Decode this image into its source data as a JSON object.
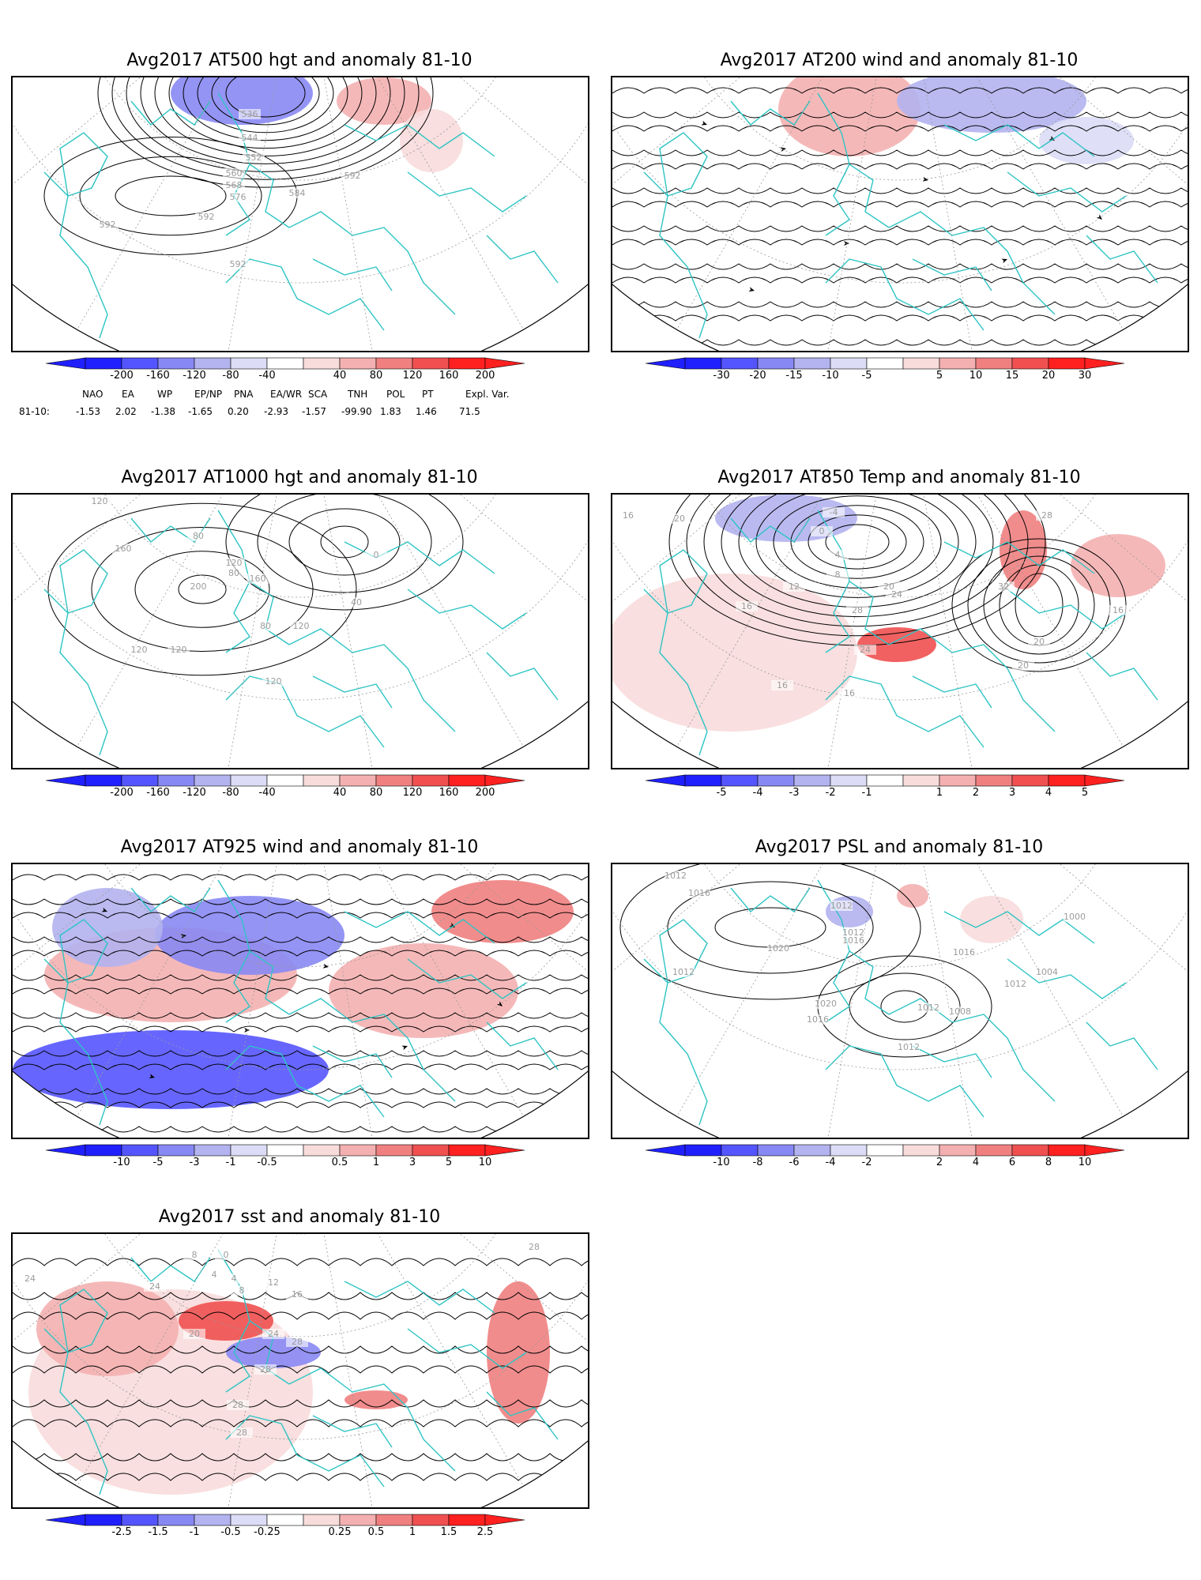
{
  "panels": [
    {
      "id": "p500",
      "title": "Avg2017 AT500 hgt and anomaly 81-10",
      "contour_labels": [
        "536",
        "544",
        "552",
        "560",
        "568",
        "576",
        "584",
        "592",
        "592",
        "592",
        "592"
      ],
      "colorbar": [
        "-200",
        "-160",
        "-120",
        "-80",
        "-40",
        "40",
        "80",
        "120",
        "160",
        "200"
      ]
    },
    {
      "id": "p200",
      "title": "Avg2017 AT200 wind and anomaly 81-10",
      "contour_labels": [],
      "colorbar": [
        "-30",
        "-20",
        "-15",
        "-10",
        "-5",
        "5",
        "10",
        "15",
        "20",
        "30"
      ]
    },
    {
      "id": "p1000",
      "title": "Avg2017 AT1000 hgt and anomaly 81-10",
      "contour_labels": [
        "120",
        "80",
        "80",
        "160",
        "200",
        "160",
        "120",
        "0",
        "40",
        "120",
        "80",
        "120",
        "120",
        "120"
      ],
      "colorbar": [
        "-200",
        "-160",
        "-120",
        "-80",
        "-40",
        "40",
        "80",
        "120",
        "160",
        "200"
      ]
    },
    {
      "id": "p850",
      "title": "Avg2017 AT850 Temp and anomaly 81-10",
      "contour_labels": [
        "16",
        "20",
        "-4",
        "0",
        "4",
        "8",
        "12",
        "16",
        "20",
        "24",
        "28",
        "32",
        "28",
        "16",
        "20",
        "24",
        "20",
        "16",
        "16"
      ],
      "colorbar": [
        "-5",
        "-4",
        "-3",
        "-2",
        "-1",
        "1",
        "2",
        "3",
        "4",
        "5"
      ]
    },
    {
      "id": "p925",
      "title": "Avg2017 AT925 wind and anomaly 81-10",
      "contour_labels": [],
      "colorbar": [
        "-10",
        "-5",
        "-3",
        "-1",
        "-0.5",
        "0.5",
        "1",
        "3",
        "5",
        "10"
      ]
    },
    {
      "id": "psl",
      "title": "Avg2017 PSL and anomaly 81-10",
      "contour_labels": [
        "1012",
        "1016",
        "1012",
        "1012",
        "1016",
        "1020",
        "1012",
        "1000",
        "1016",
        "1004",
        "1012",
        "1012",
        "1008",
        "1020",
        "1016",
        "1012"
      ],
      "colorbar": [
        "-10",
        "-8",
        "-6",
        "-4",
        "-2",
        "2",
        "4",
        "6",
        "8",
        "10"
      ]
    },
    {
      "id": "sst",
      "title": "Avg2017 sst and anomaly 81-10",
      "contour_labels": [
        "24",
        "8",
        "4",
        "0",
        "4",
        "8",
        "12",
        "16",
        "24",
        "20",
        "24",
        "28",
        "28",
        "28",
        "28",
        "28"
      ],
      "colorbar": [
        "-2.5",
        "-1.5",
        "-1",
        "-0.5",
        "-0.25",
        "0.25",
        "0.5",
        "1",
        "1.5",
        "2.5"
      ]
    }
  ],
  "teleconnections": {
    "headers": [
      "NAO",
      "EA",
      "WP",
      "EP/NP",
      "PNA",
      "EA/WR",
      "SCA",
      "TNH",
      "POL",
      "PT",
      "Expl. Var."
    ],
    "row_label": "81-10:",
    "values": [
      "-1.53",
      "2.02",
      "-1.38",
      "-1.65",
      "0.20",
      "-2.93",
      "-1.57",
      "-99.90",
      "1.83",
      "1.46",
      "71.5"
    ]
  },
  "colors": {
    "coast": "#2ec4c4",
    "contour": "#000000",
    "neg": [
      "#2020ff",
      "#5555ff",
      "#8888f4",
      "#b3b3f0",
      "#dcdcf6"
    ],
    "pos": [
      "#f8dcdc",
      "#f4b0b0",
      "#f08080",
      "#f05050",
      "#ff2020"
    ]
  }
}
